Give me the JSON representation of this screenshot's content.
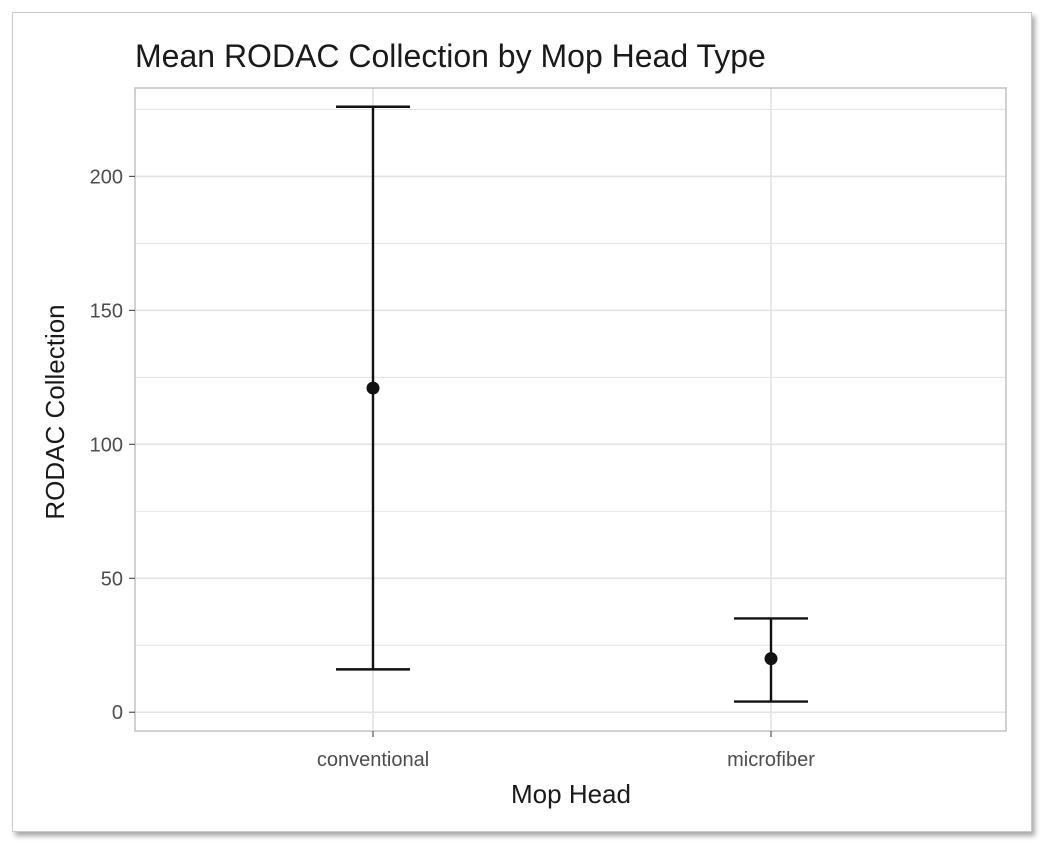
{
  "chart_data": {
    "type": "errorbar",
    "title": "Mean RODAC Collection by Mop Head Type",
    "xlabel": "Mop Head",
    "ylabel": "RODAC Collection",
    "categories": [
      "conventional",
      "microfiber"
    ],
    "series": [
      {
        "mean": [
          121,
          20
        ],
        "lower": [
          16,
          4
        ],
        "upper": [
          226,
          35
        ]
      }
    ],
    "ylim": [
      -7,
      233
    ],
    "yticks": [
      0,
      50,
      100,
      150,
      200
    ],
    "grid": true,
    "theme": "light",
    "colors": {
      "marks": "#111111",
      "grid": "#e3e3e3",
      "panel_border": "#bdbdbd"
    }
  }
}
